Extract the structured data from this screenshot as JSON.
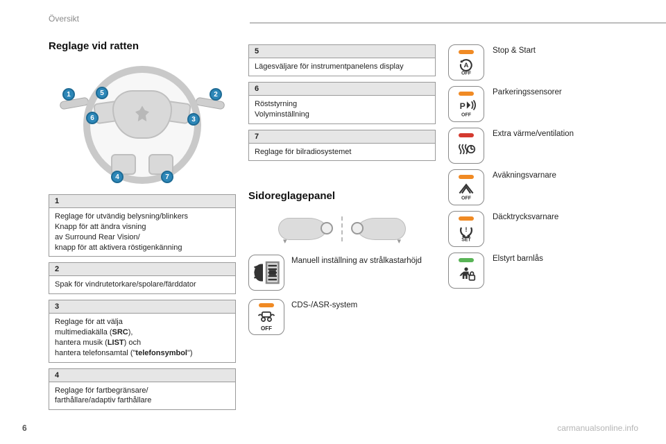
{
  "breadcrumb": "Översikt",
  "page_number": "6",
  "watermark": "carmanualsonline.info",
  "colors": {
    "led_orange": "#f08a24",
    "led_red": "#d43a2f",
    "led_green": "#59b456",
    "pin_bg": "#2d87b8",
    "box_border": "#888888",
    "text": "#222222"
  },
  "left": {
    "heading": "Reglage vid ratten",
    "wheel_pins": [
      "1",
      "2",
      "3",
      "4",
      "5",
      "6",
      "7"
    ],
    "boxes": [
      {
        "n": "1",
        "body_html": "Reglage för utvändig belysning/blinkers<br>Knapp för att ändra visning<br>av Surround Rear Vision/<br>knapp för att aktivera röstigenkänning"
      },
      {
        "n": "2",
        "body_html": "Spak för vindrutetorkare/spolare/färddator"
      },
      {
        "n": "3",
        "body_html": "Reglage för att välja<br>multimediakälla (<b>SRC</b>),<br>hantera musik (<b>LIST</b>) och<br>hantera telefonsamtal (\"<b>telefonsymbol</b>\")"
      },
      {
        "n": "4",
        "body_html": "Reglage för fartbegränsare/<br>farthållare/adaptiv farthållare"
      }
    ]
  },
  "mid": {
    "boxes": [
      {
        "n": "5",
        "body_html": "Lägesväljare för instrumentpanelens display"
      },
      {
        "n": "6",
        "body_html": "Röststyrning<br>Volyminställning"
      },
      {
        "n": "7",
        "body_html": "Reglage för bilradiosystemet"
      }
    ],
    "side_heading": "Sidoreglagepanel",
    "manual": {
      "label": "Manuell inställning av strålkastarhöjd"
    },
    "cds": {
      "label": "CDS-/ASR-system",
      "led": "orange",
      "off": "OFF"
    }
  },
  "right": {
    "items": [
      {
        "label": "Stop & Start",
        "led": "orange",
        "icon": "a-off",
        "off": "OFF"
      },
      {
        "label": "Parkeringssensorer",
        "led": "orange",
        "icon": "park",
        "off": "OFF"
      },
      {
        "label": "Extra värme/ventilation",
        "led": "red",
        "icon": "heat",
        "off": ""
      },
      {
        "label": "Aväkningsvarnare",
        "led": "orange",
        "icon": "lane",
        "off": "OFF"
      },
      {
        "label": "Däcktrycksvarnare",
        "led": "orange",
        "icon": "tpms",
        "off": "SET"
      },
      {
        "label": "Elstyrt barnlås",
        "led": "green",
        "icon": "childlock",
        "off": ""
      }
    ]
  }
}
